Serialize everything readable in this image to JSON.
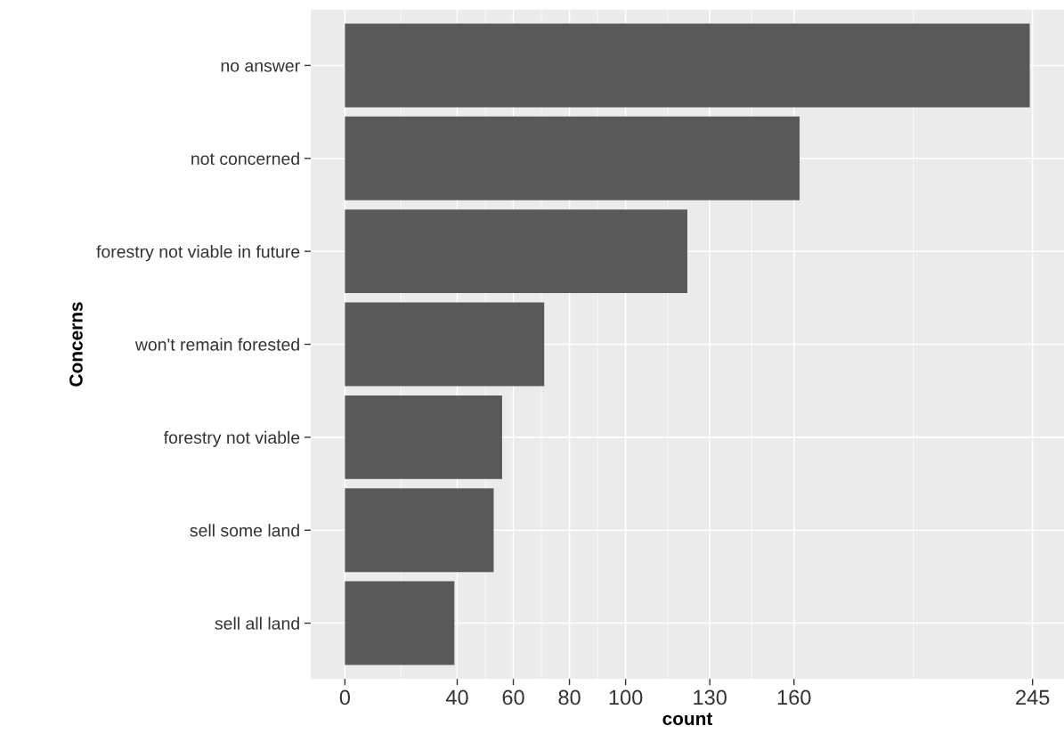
{
  "chart_data": {
    "type": "bar",
    "orientation": "horizontal",
    "xlabel": "count",
    "ylabel": "Concerns",
    "categories": [
      "no answer",
      "not concerned",
      "forestry not viable in future",
      "won't remain forested",
      "forestry not viable",
      "sell some land",
      "sell all land"
    ],
    "values": [
      244,
      162,
      122,
      71,
      56,
      53,
      39
    ],
    "color": "#595959",
    "xlim": [
      -12.2,
      256.2
    ],
    "xticks": [
      0,
      40,
      60,
      80,
      100,
      130,
      160,
      245
    ],
    "grid": true
  }
}
